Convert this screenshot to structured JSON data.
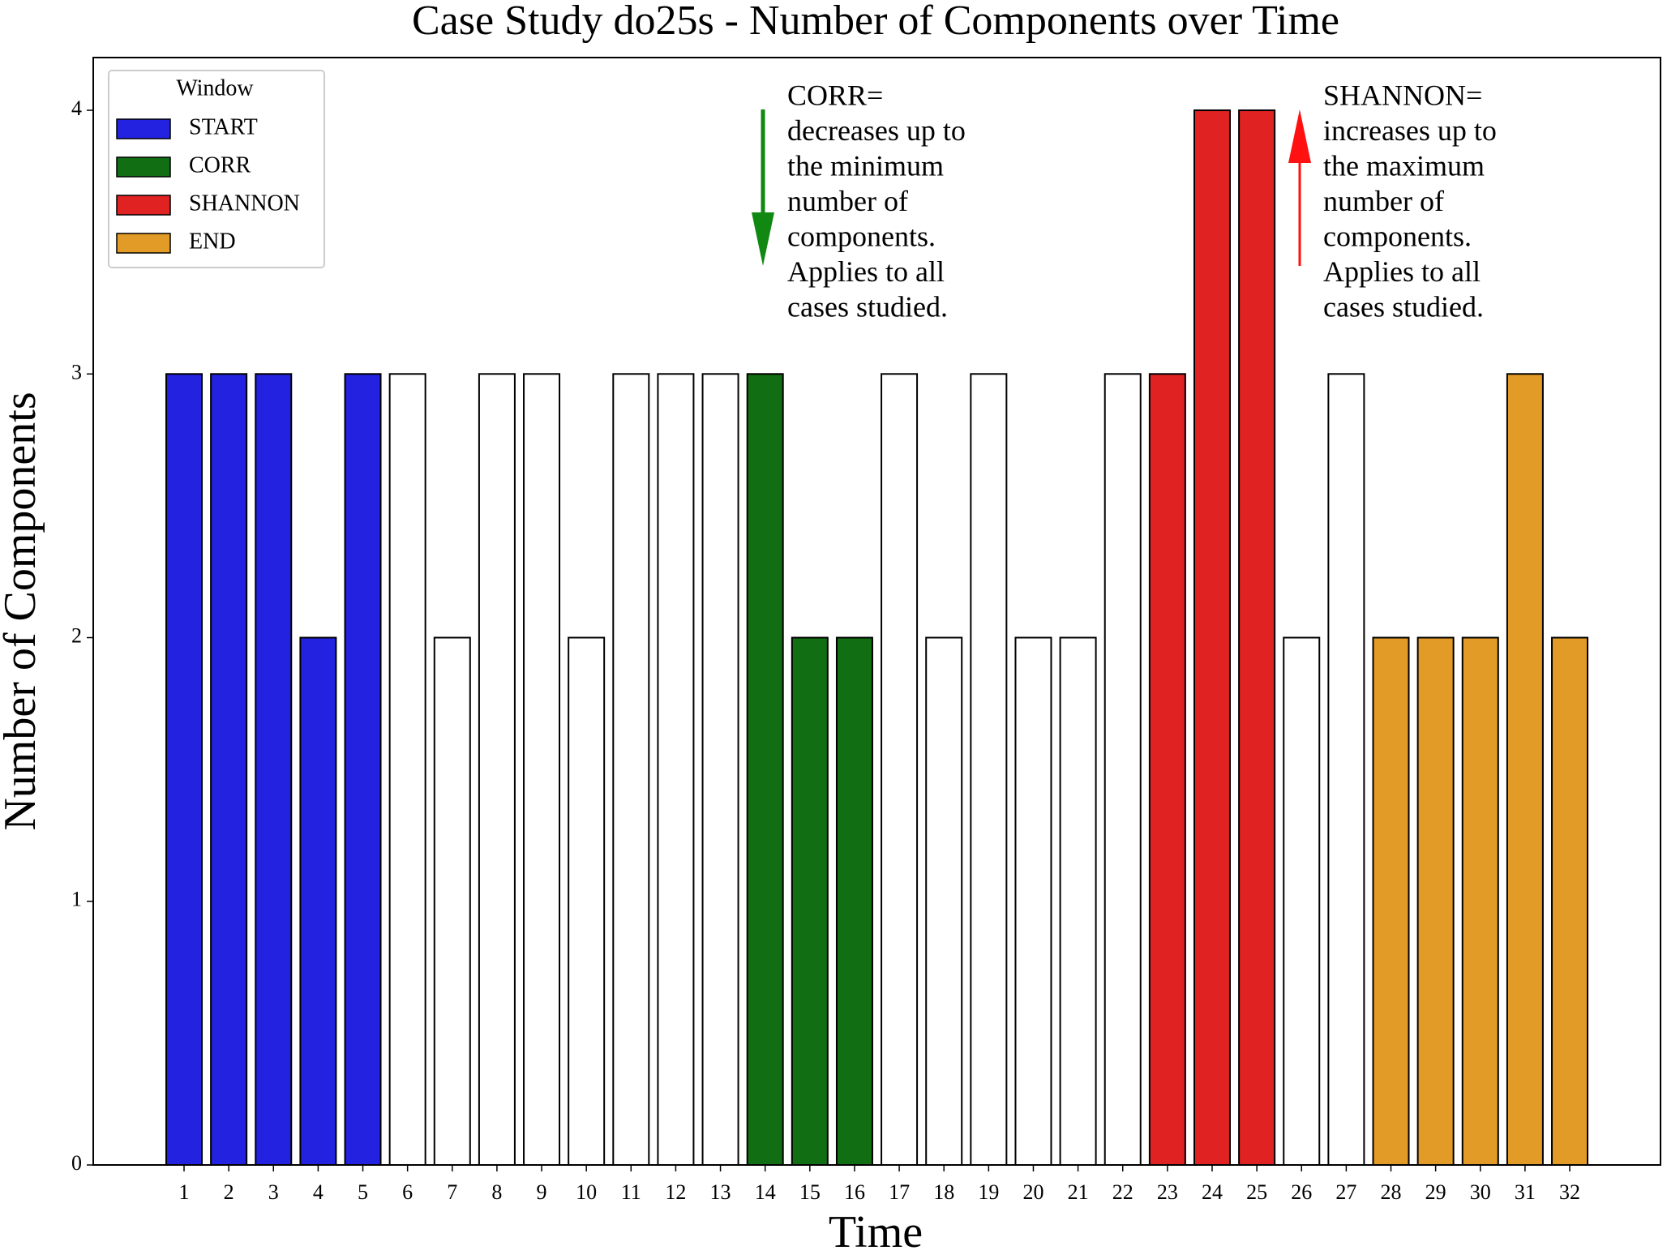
{
  "chart_data": {
    "type": "bar",
    "title": "Case Study do25s - Number of Components over Time",
    "x_label": "Time",
    "y_label": "Number of Components",
    "categories": [
      "1",
      "2",
      "3",
      "4",
      "5",
      "6",
      "7",
      "8",
      "9",
      "10",
      "11",
      "12",
      "13",
      "14",
      "15",
      "16",
      "17",
      "18",
      "19",
      "20",
      "21",
      "22",
      "23",
      "24",
      "25",
      "26",
      "27",
      "28",
      "29",
      "30",
      "31",
      "32"
    ],
    "values": [
      3,
      3,
      3,
      2,
      3,
      3,
      2,
      3,
      3,
      2,
      3,
      3,
      3,
      3,
      2,
      2,
      3,
      2,
      3,
      2,
      2,
      3,
      3,
      4,
      4,
      2,
      3,
      2,
      2,
      2,
      3,
      2
    ],
    "colors": [
      "#2222e0",
      "#2222e0",
      "#2222e0",
      "#2222e0",
      "#2222e0",
      "#ffffff",
      "#ffffff",
      "#ffffff",
      "#ffffff",
      "#ffffff",
      "#ffffff",
      "#ffffff",
      "#ffffff",
      "#126e12",
      "#126e12",
      "#126e12",
      "#ffffff",
      "#ffffff",
      "#ffffff",
      "#ffffff",
      "#ffffff",
      "#ffffff",
      "#e02222",
      "#e02222",
      "#e02222",
      "#ffffff",
      "#ffffff",
      "#e29b26",
      "#e29b26",
      "#e29b26",
      "#e29b26",
      "#e29b26"
    ],
    "ylim": [
      0,
      4.2
    ],
    "yticks": [
      0,
      1,
      2,
      3,
      4
    ],
    "legend": {
      "title": "Window",
      "position": "upper left",
      "entries": [
        {
          "name": "START",
          "color": "#2222e0"
        },
        {
          "name": "CORR",
          "color": "#126e12"
        },
        {
          "name": "SHANNON",
          "color": "#e02222"
        },
        {
          "name": "END",
          "color": "#e29b26"
        }
      ]
    },
    "annotations": [
      {
        "lines": [
          "CORR=",
          "decreases up to",
          "the minimum",
          "number of",
          "components.",
          "Applies to all",
          "cases studied."
        ]
      },
      {
        "lines": [
          "SHANNON=",
          "increases up to",
          "the maximum",
          "number of",
          "components.",
          "Applies to all",
          "cases studied."
        ]
      }
    ]
  }
}
